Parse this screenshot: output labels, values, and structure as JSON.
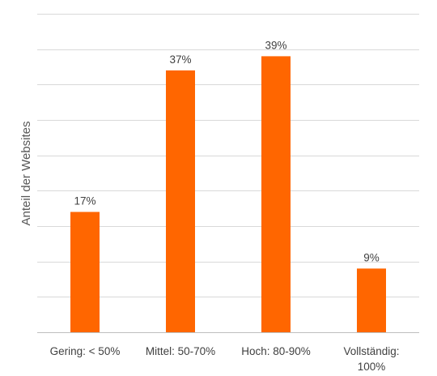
{
  "chart_data": {
    "type": "bar",
    "title": "",
    "xlabel": "",
    "ylabel": "Anteil der Websites",
    "categories": [
      [
        "Gering: < 50%"
      ],
      [
        "Mittel: 50-70%"
      ],
      [
        "Hoch: 80-90%"
      ],
      [
        "Vollständig:",
        "100%"
      ]
    ],
    "values": [
      17,
      37,
      39,
      9
    ],
    "data_labels": [
      "17%",
      "37%",
      "39%",
      "9%"
    ],
    "ylim": [
      0,
      45
    ],
    "y_axis_ticks_shown": false,
    "grid": true,
    "legend": "none",
    "bar_color": "#FF6600",
    "grid_color": "#D9D9D9"
  }
}
